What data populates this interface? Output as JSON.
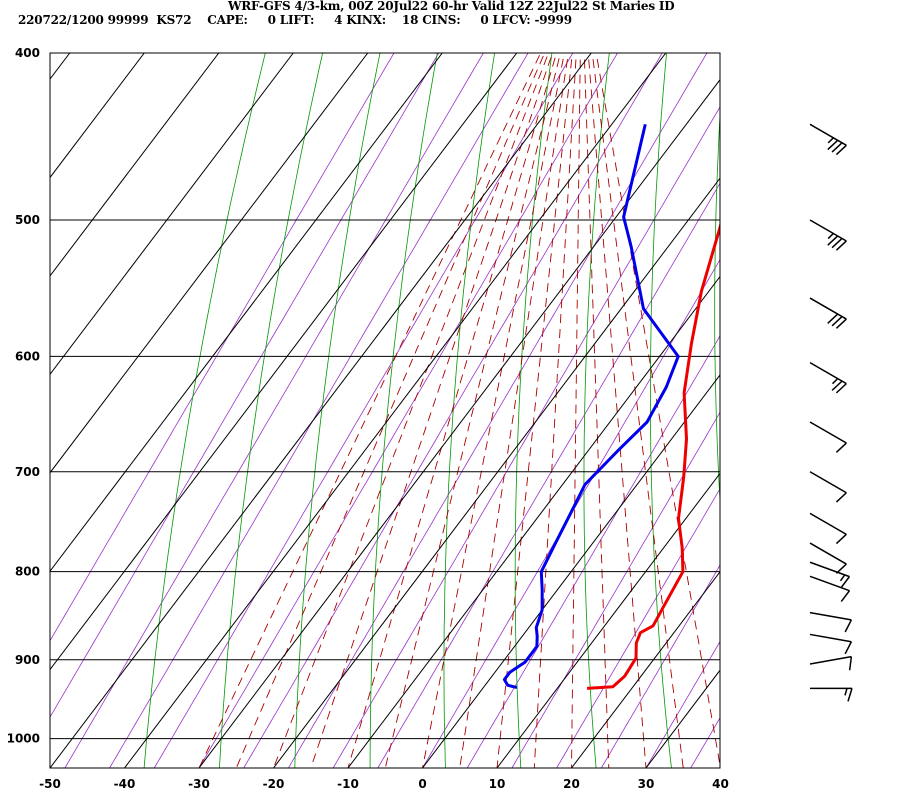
{
  "header": {
    "line1": "WRF-GFS 4/3-km, 00Z 20Jul22 60-hr Valid 12Z 22Jul22 St Maries ID",
    "line2": "220722/1200 99999  KS72    CAPE:     0 LIFT:     4 KINX:    18 CINS:     0 LFCV: -9999"
  },
  "chart_data": {
    "type": "line",
    "title": "WRF-GFS 4/3-km, 00Z 20Jul22 60-hr Valid 12Z 22Jul22 St Maries ID",
    "subtitle": "220722/1200 99999  KS72    CAPE:     0 LIFT:     4 KINX:    18 CINS:     0 LFCV: -9999",
    "x_ticks": [
      "-50",
      "-40",
      "-30",
      "-20",
      "-10",
      "0",
      "10",
      "20",
      "30",
      "40"
    ],
    "y_ticks": [
      "400",
      "500",
      "600",
      "700",
      "800",
      "900",
      "1000"
    ],
    "xlim": [
      -50,
      40
    ],
    "ylim_pressure": [
      1040,
      400
    ],
    "y_scale": "log",
    "grid": true,
    "series": [
      {
        "color": "#ee0000",
        "points": [
          [
            -21.5,
            440
          ],
          [
            -18,
            475
          ],
          [
            -15,
            505
          ],
          [
            -11,
            550
          ],
          [
            -7,
            590
          ],
          [
            -3,
            630
          ],
          [
            2,
            670
          ],
          [
            5.5,
            705
          ],
          [
            9,
            745
          ],
          [
            12.5,
            775
          ],
          [
            15,
            800
          ],
          [
            16,
            840
          ],
          [
            16.5,
            860
          ],
          [
            15.5,
            868
          ],
          [
            16,
            880
          ],
          [
            17.5,
            898
          ],
          [
            17.8,
            920
          ],
          [
            17.3,
            933
          ],
          [
            14,
            935
          ]
        ]
      },
      {
        "color": "#0000ee",
        "points": [
          [
            -35.5,
            440
          ],
          [
            -29,
            498
          ],
          [
            -25,
            518
          ],
          [
            -17,
            563
          ],
          [
            -7.5,
            600
          ],
          [
            -6,
            625
          ],
          [
            -5,
            655
          ],
          [
            -6,
            680
          ],
          [
            -7,
            712
          ],
          [
            -6,
            740
          ],
          [
            -5,
            770
          ],
          [
            -4,
            800
          ],
          [
            -2,
            820
          ],
          [
            0,
            842
          ],
          [
            1,
            862
          ],
          [
            2,
            872
          ],
          [
            3,
            884
          ],
          [
            3,
            903
          ],
          [
            2,
            915
          ],
          [
            2,
            924
          ],
          [
            3,
            931
          ],
          [
            4.5,
            934
          ]
        ]
      }
    ],
    "background_lines": {
      "isotherm_color": "#000000",
      "dry_adiabat_color": "#009900",
      "moist_adiabat_color": "#aa0000",
      "mixing_ratio_color": "#9933cc"
    },
    "wind_barbs": [
      {
        "pressure": 440,
        "speed_kt": 35,
        "direction_deg": 300
      },
      {
        "pressure": 500,
        "speed_kt": 35,
        "direction_deg": 300
      },
      {
        "pressure": 555,
        "speed_kt": 30,
        "direction_deg": 300
      },
      {
        "pressure": 605,
        "speed_kt": 25,
        "direction_deg": 300
      },
      {
        "pressure": 655,
        "speed_kt": 10,
        "direction_deg": 300
      },
      {
        "pressure": 700,
        "speed_kt": 10,
        "direction_deg": 300
      },
      {
        "pressure": 740,
        "speed_kt": 10,
        "direction_deg": 300
      },
      {
        "pressure": 770,
        "speed_kt": 10,
        "direction_deg": 300
      },
      {
        "pressure": 790,
        "speed_kt": 15,
        "direction_deg": 290
      },
      {
        "pressure": 805,
        "speed_kt": 10,
        "direction_deg": 290
      },
      {
        "pressure": 845,
        "speed_kt": 10,
        "direction_deg": 280
      },
      {
        "pressure": 870,
        "speed_kt": 10,
        "direction_deg": 280
      },
      {
        "pressure": 905,
        "speed_kt": 10,
        "direction_deg": 260
      },
      {
        "pressure": 935,
        "speed_kt": 15,
        "direction_deg": 270
      }
    ]
  }
}
